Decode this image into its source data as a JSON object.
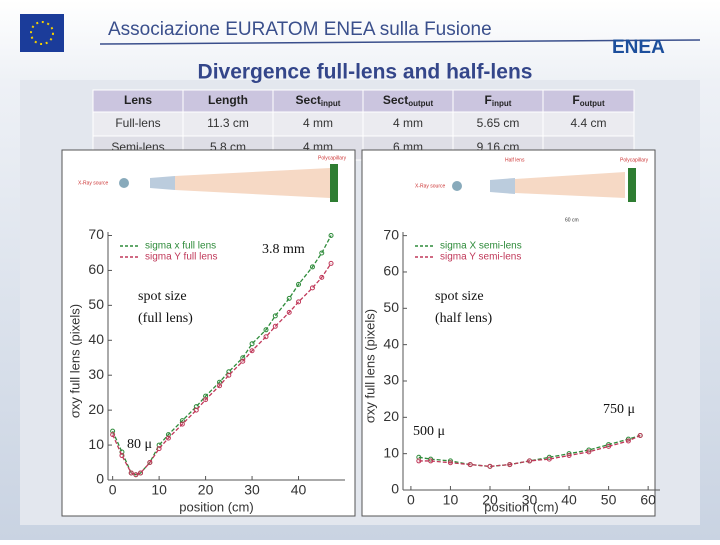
{
  "header": {
    "org": "Associazione EURATOM ENEA sulla Fusione",
    "logo": "ENEA",
    "title": "Divergence full-lens and half-lens"
  },
  "table": {
    "head": [
      {
        "text": "Lens"
      },
      {
        "text": "Length"
      },
      {
        "text": "Sect",
        "sub": "input"
      },
      {
        "text": "Sect",
        "sub": "output"
      },
      {
        "text": "F",
        "sub": "input"
      },
      {
        "text": "F",
        "sub": "output"
      }
    ],
    "rows": [
      [
        "Full-lens",
        "11.3 cm",
        "4 mm",
        "4 mm",
        "5.65 cm",
        "4.4 cm"
      ],
      [
        "Semi-lens",
        "5.8 cm",
        "4 mm",
        "6 mm",
        "9.16 cm"
      ]
    ]
  },
  "diagrams": [
    {
      "labels": [
        "X-Ray source",
        "Polycapillary"
      ]
    },
    {
      "labels": [
        "X-Ray source",
        "Half lens",
        "Polycapillary",
        "60 cm"
      ]
    }
  ],
  "chart_data": [
    {
      "type": "line",
      "y_label": "σxy full lens (pixels)",
      "x_label": "position (cm)",
      "x": [
        0,
        2,
        4,
        5,
        6,
        8,
        10,
        12,
        15,
        18,
        20,
        23,
        25,
        28,
        30,
        33,
        35,
        38,
        40,
        43,
        45,
        47
      ],
      "series": [
        {
          "name": "sigma x full lens",
          "color": "#2e8b3a",
          "values": [
            14,
            8,
            2,
            1.5,
            2,
            5,
            10,
            13,
            17,
            21,
            24,
            28,
            31,
            35,
            39,
            43,
            47,
            52,
            56,
            61,
            65,
            70
          ]
        },
        {
          "name": "sigma Y full lens",
          "color": "#c0395a",
          "values": [
            13,
            7,
            2,
            1.5,
            2,
            5,
            9,
            12,
            16,
            20,
            23,
            27,
            30,
            34,
            37,
            41,
            44,
            48,
            51,
            55,
            58,
            62
          ]
        }
      ],
      "xlim": [
        -1,
        50
      ],
      "ylim": [
        0,
        71
      ],
      "xticks": [
        0,
        10,
        20,
        30,
        40
      ],
      "yticks": [
        0,
        10,
        20,
        30,
        40,
        50,
        60,
        70
      ],
      "annotations": [
        "3.8 mm",
        "spot size",
        "(full lens)",
        "80 μ"
      ]
    },
    {
      "type": "line",
      "y_label": "σxy full lens (pixels)",
      "x_label": "position (cm)",
      "x": [
        2,
        5,
        10,
        15,
        20,
        25,
        30,
        35,
        40,
        45,
        50,
        55,
        58
      ],
      "series": [
        {
          "name": "sigma X semi-lens",
          "color": "#2e8b3a",
          "values": [
            9,
            8.5,
            8,
            7,
            6.5,
            7,
            8,
            9,
            10,
            11,
            12.5,
            14,
            15
          ]
        },
        {
          "name": "sigma Y semi-lens",
          "color": "#c0395a",
          "values": [
            8,
            8,
            7.5,
            7,
            6.5,
            7,
            8,
            8.5,
            9.5,
            10.5,
            12,
            13.5,
            15
          ]
        }
      ],
      "xlim": [
        -2,
        63
      ],
      "ylim": [
        0,
        71
      ],
      "xticks": [
        0,
        10,
        20,
        30,
        40,
        50,
        60
      ],
      "yticks": [
        0,
        10,
        20,
        30,
        40,
        50,
        60,
        70
      ],
      "annotations": [
        "spot size",
        "(half lens)",
        "750 μ",
        "500 μ"
      ]
    }
  ]
}
